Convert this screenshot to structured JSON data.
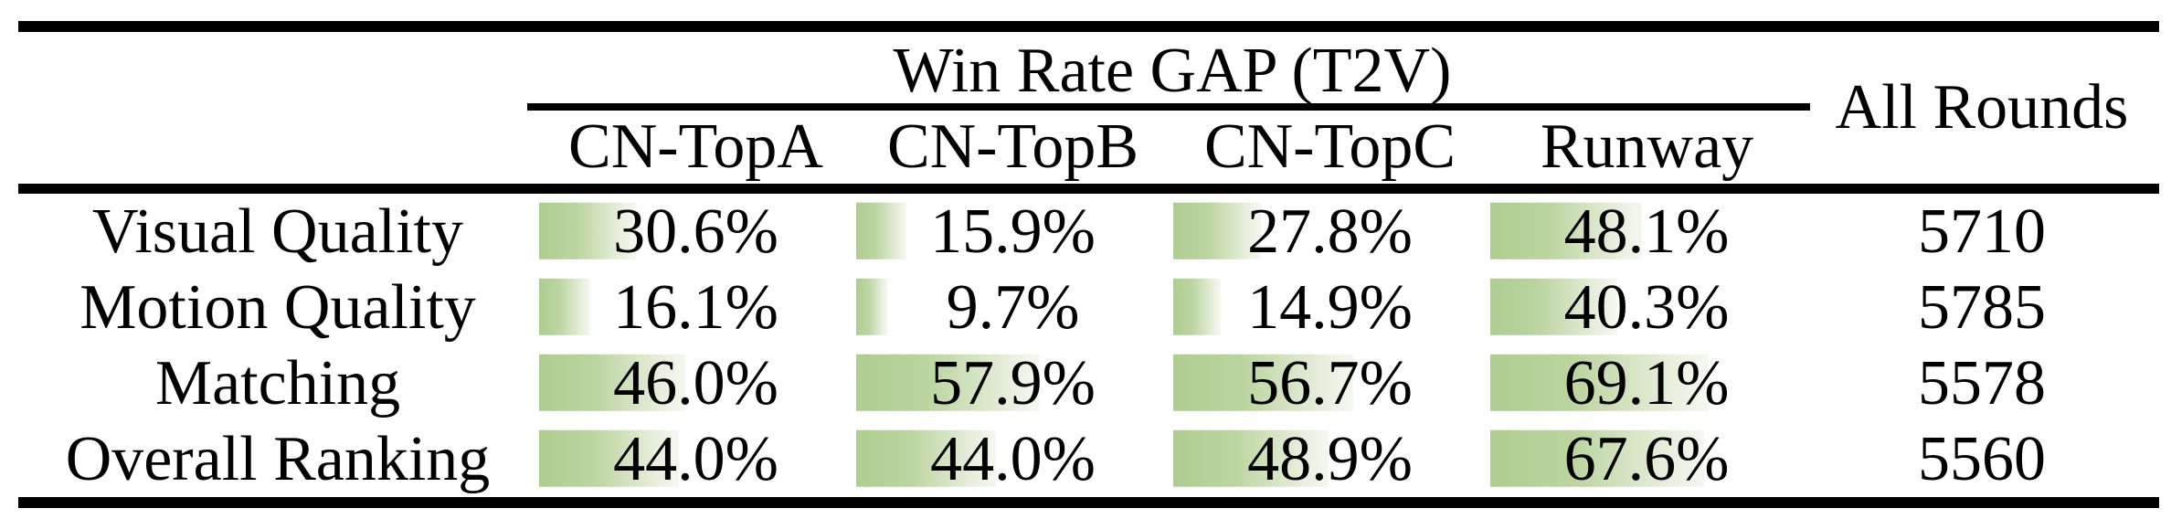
{
  "table": {
    "group_header": "Win Rate GAP (T2V)",
    "all_rounds_header": "All Rounds",
    "columns": [
      "CN-TopA",
      "CN-TopB",
      "CN-TopC",
      "Runway"
    ],
    "rows": [
      {
        "label": "Visual Quality",
        "gaps": [
          {
            "pct": 30.6,
            "text": "30.6%"
          },
          {
            "pct": 15.9,
            "text": "15.9%"
          },
          {
            "pct": 27.8,
            "text": "27.8%"
          },
          {
            "pct": 48.1,
            "text": "48.1%"
          }
        ],
        "all_rounds": "5710"
      },
      {
        "label": "Motion Quality",
        "gaps": [
          {
            "pct": 16.1,
            "text": "16.1%"
          },
          {
            "pct": 9.7,
            "text": "9.7%"
          },
          {
            "pct": 14.9,
            "text": "14.9%"
          },
          {
            "pct": 40.3,
            "text": "40.3%"
          }
        ],
        "all_rounds": "5785"
      },
      {
        "label": "Matching",
        "gaps": [
          {
            "pct": 46.0,
            "text": "46.0%"
          },
          {
            "pct": 57.9,
            "text": "57.9%"
          },
          {
            "pct": 56.7,
            "text": "56.7%"
          },
          {
            "pct": 69.1,
            "text": "69.1%"
          }
        ],
        "all_rounds": "5578"
      },
      {
        "label": "Overall Ranking",
        "gaps": [
          {
            "pct": 44.0,
            "text": "44.0%"
          },
          {
            "pct": 44.0,
            "text": "44.0%"
          },
          {
            "pct": 48.9,
            "text": "48.9%"
          },
          {
            "pct": 67.6,
            "text": "67.6%"
          }
        ],
        "all_rounds": "5560"
      }
    ]
  },
  "colors": {
    "bar_green": "#aecd90",
    "bar_fade": "#f5f8f0",
    "text": "#000000",
    "rule": "#000000",
    "background": "#ffffff"
  },
  "chart_data": {
    "type": "table",
    "title": "Win Rate GAP (T2V)",
    "columns": [
      "CN-TopA",
      "CN-TopB",
      "CN-TopC",
      "Runway",
      "All Rounds"
    ],
    "row_labels": [
      "Visual Quality",
      "Motion Quality",
      "Matching",
      "Overall Ranking"
    ],
    "series": [
      {
        "name": "Visual Quality",
        "values": [
          30.6,
          15.9,
          27.8,
          48.1
        ],
        "all_rounds": 5710
      },
      {
        "name": "Motion Quality",
        "values": [
          16.1,
          9.7,
          14.9,
          40.3
        ],
        "all_rounds": 5785
      },
      {
        "name": "Matching",
        "values": [
          46.0,
          57.9,
          56.7,
          69.1
        ],
        "all_rounds": 5578
      },
      {
        "name": "Overall Ranking",
        "values": [
          44.0,
          44.0,
          48.9,
          67.6
        ],
        "all_rounds": 5560
      }
    ],
    "value_unit": "%",
    "bar_scale_max": 100,
    "layout": "in-cell green gradient data bars, bar width proportional to percentage"
  }
}
